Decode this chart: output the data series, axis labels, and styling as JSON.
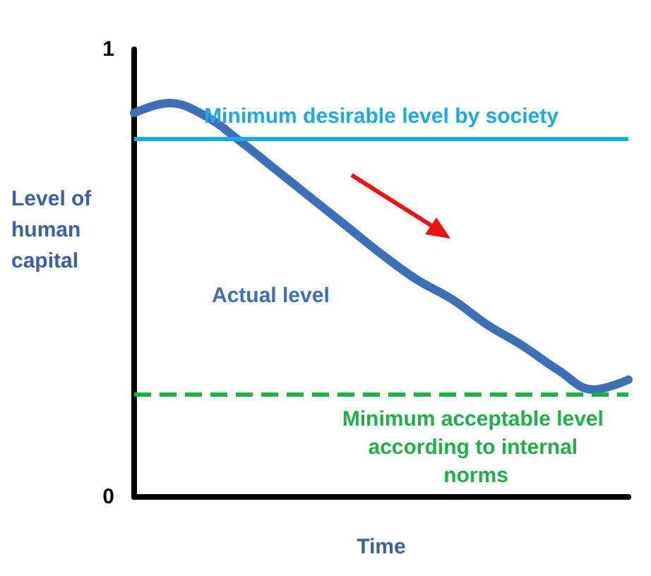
{
  "chart_data": {
    "type": "line",
    "xlabel": "Time",
    "ylabel": "Level of human capital",
    "categories": [
      null,
      null,
      null,
      null,
      null,
      null,
      null,
      null,
      null,
      null,
      null,
      null,
      null,
      null,
      null
    ],
    "series": [
      {
        "name": "Actual level",
        "color": "#3d6fb6",
        "values": [
          0.858,
          0.88,
          0.852,
          0.795,
          0.732,
          0.669,
          0.606,
          0.543,
          0.486,
          0.442,
          0.385,
          0.338,
          0.284,
          0.24,
          0.262
        ]
      }
    ],
    "ylim": [
      0,
      1
    ],
    "yticks": [
      0,
      1
    ],
    "grid": false,
    "legend": false,
    "marker": "none",
    "line_style": "solid",
    "ref_lines": [
      {
        "axis": "y",
        "value": 0.804,
        "label": "Minimum desirable level by society",
        "color": "#1ca9e6",
        "line_style": "solid"
      },
      {
        "axis": "y",
        "value": 0.227,
        "label": "Minimum acceptable level according to internal norms",
        "color": "#1fae4b",
        "line_style": "dashed"
      }
    ]
  }
}
